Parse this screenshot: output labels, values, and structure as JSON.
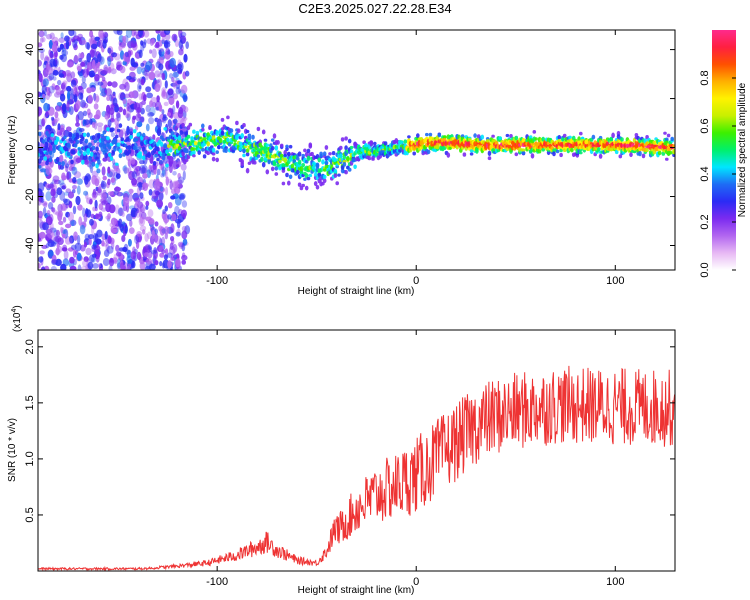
{
  "title": "C2E3.2025.027.22.28.E34",
  "chart_data": [
    {
      "type": "heatmap",
      "xlabel": "Height of straight line (km)",
      "ylabel": "Frequency (Hz)",
      "xlim": [
        -190,
        130
      ],
      "ylim": [
        -50,
        48
      ],
      "xticks": [
        -100,
        0,
        100
      ],
      "yticks": [
        -40,
        -20,
        0,
        20,
        40
      ],
      "colorbar": {
        "label": "Normalized spectral amplitude",
        "range": [
          0,
          1
        ],
        "ticks": [
          0.0,
          0.2,
          0.4,
          0.6,
          0.8
        ],
        "tick_labels": [
          "0.0",
          "0.2",
          "0.4",
          "0.6",
          "0.8"
        ],
        "colors": [
          "#ffffff",
          "#e7b8f4",
          "#b266f0",
          "#7b2bf0",
          "#2b2bf5",
          "#1e6cf5",
          "#00e6ff",
          "#00f06b",
          "#3cf000",
          "#c8f000",
          "#fff200",
          "#ffb000",
          "#ff5000",
          "#ff2040",
          "#ff2a8c"
        ]
      },
      "trend": {
        "x": [
          -190,
          -120,
          -110,
          -100,
          -95,
          -85,
          -75,
          -65,
          -55,
          -45,
          -40,
          -30,
          -20,
          -10,
          0,
          5,
          15,
          30,
          60,
          100,
          130
        ],
        "y": [
          0,
          1,
          2,
          3,
          4,
          0,
          -2,
          -6,
          -8,
          -8,
          -6,
          -2,
          -1,
          0,
          1,
          2,
          2,
          1,
          1,
          1,
          0
        ]
      }
    },
    {
      "type": "line",
      "xlabel": "Height of straight line (km)",
      "ylabel": "SNR (10 * v/v)",
      "y_multiplier_label": "(x10",
      "y_multiplier_exp": "4",
      "y_multiplier_close": ")",
      "xlim": [
        -190,
        130
      ],
      "ylim": [
        0,
        2.15
      ],
      "xticks": [
        -100,
        0,
        100
      ],
      "yticks": [
        0.5,
        1.0,
        1.5,
        2.0
      ],
      "ytick_labels": [
        "0.5",
        "1.0",
        "1.5",
        "2.0"
      ],
      "color": "#ee3333",
      "trend": {
        "x": [
          -190,
          -140,
          -125,
          -105,
          -90,
          -80,
          -75,
          -70,
          -60,
          -50,
          -45,
          -40,
          -35,
          -30,
          -25,
          -20,
          -15,
          -10,
          0,
          10,
          20,
          30,
          40,
          50,
          60,
          70,
          80,
          90,
          100,
          110,
          120,
          130
        ],
        "y": [
          0.02,
          0.02,
          0.03,
          0.06,
          0.12,
          0.18,
          0.22,
          0.16,
          0.08,
          0.06,
          0.15,
          0.35,
          0.45,
          0.55,
          0.62,
          0.68,
          0.72,
          0.76,
          0.85,
          1.0,
          1.15,
          1.3,
          1.38,
          1.42,
          1.45,
          1.48,
          1.48,
          1.47,
          1.47,
          1.46,
          1.46,
          1.45
        ]
      }
    }
  ]
}
